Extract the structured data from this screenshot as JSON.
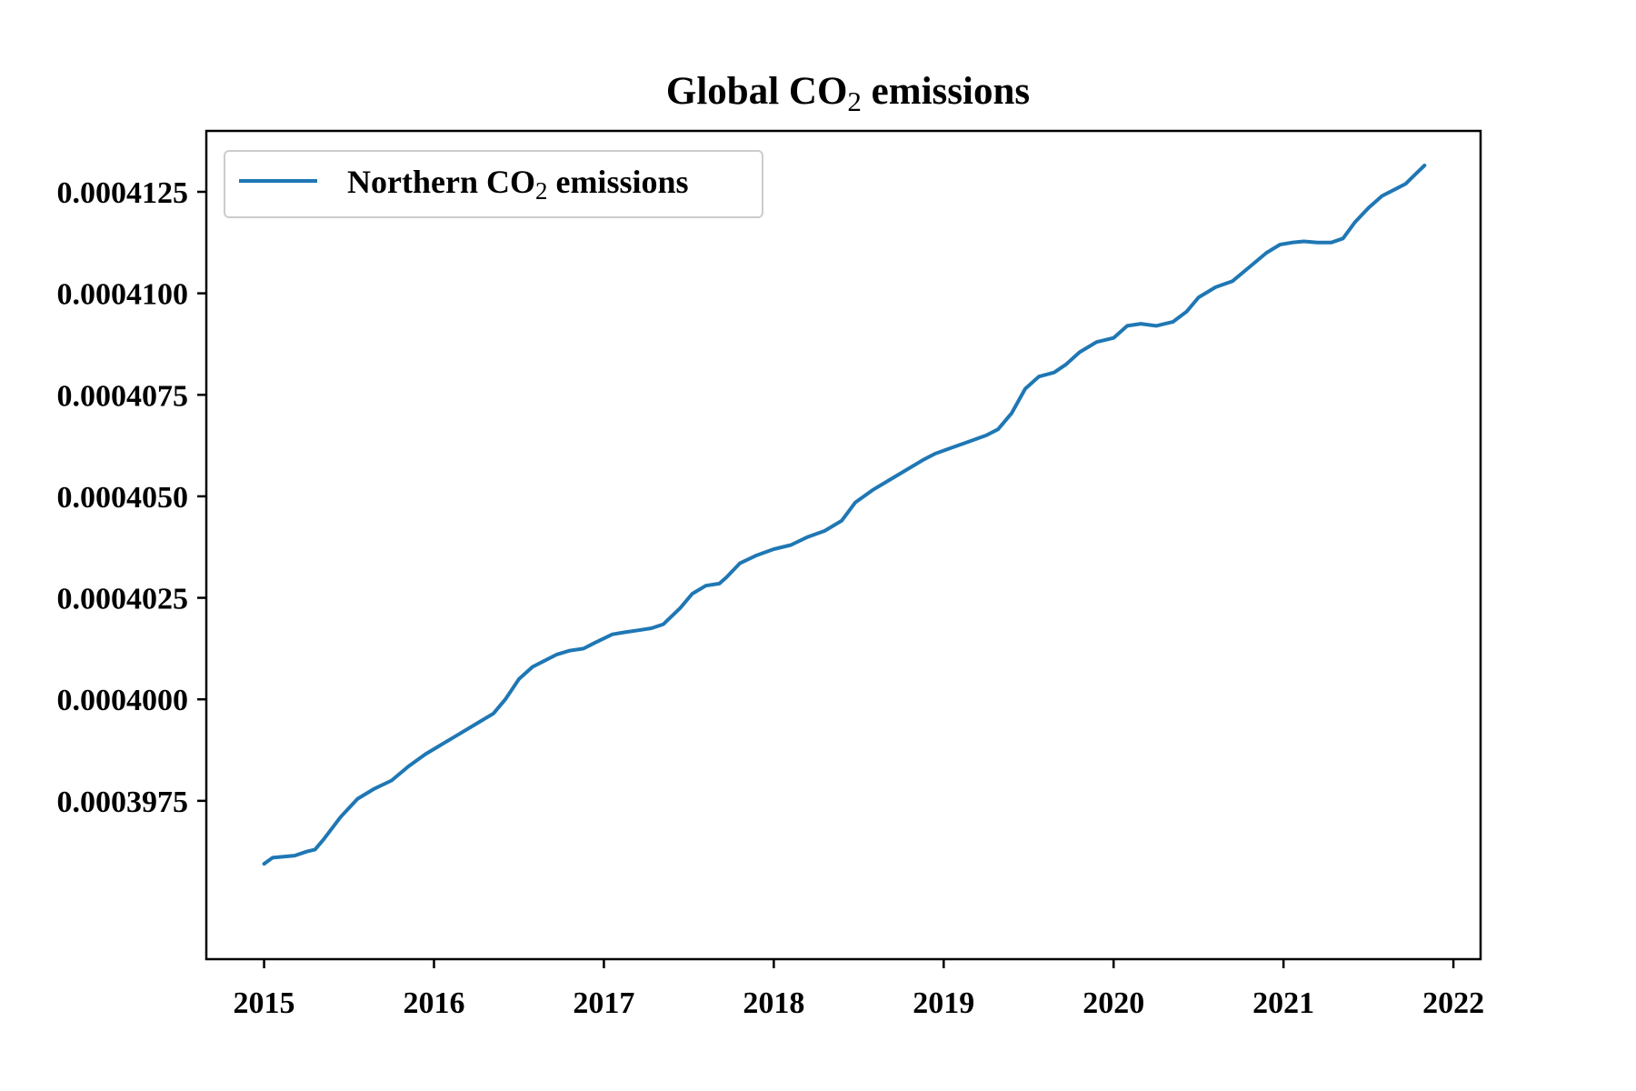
{
  "chart_data": {
    "type": "line",
    "title": "Global CO",
    "title_subscript": "2",
    "title_suffix": " emissions",
    "xlabel": "",
    "ylabel": "",
    "xlim": [
      2014.66,
      2022.16
    ],
    "ylim": [
      0.0003936,
      0.000414
    ],
    "xticks": [
      2015,
      2016,
      2017,
      2018,
      2019,
      2020,
      2021,
      2022
    ],
    "xtick_labels": [
      "2015",
      "2016",
      "2017",
      "2018",
      "2019",
      "2020",
      "2021",
      "2022"
    ],
    "yticks": [
      0.0003975,
      0.0004,
      0.0004025,
      0.000405,
      0.0004075,
      0.00041,
      0.0004125
    ],
    "ytick_labels": [
      "0.0003975",
      "0.0004000",
      "0.0004025",
      "0.0004050",
      "0.0004075",
      "0.0004100",
      "0.0004125"
    ],
    "grid": false,
    "legend_position": "top-left",
    "series": [
      {
        "name": "Northern CO",
        "name_subscript": "2",
        "name_suffix": " emissions",
        "color": "#1f77b4",
        "points": [
          [
            2015.0,
            0.00039595
          ],
          [
            2015.05,
            0.0003961
          ],
          [
            2015.1,
            0.00039612
          ],
          [
            2015.18,
            0.00039615
          ],
          [
            2015.25,
            0.00039625
          ],
          [
            2015.3,
            0.0003963
          ],
          [
            2015.35,
            0.00039655
          ],
          [
            2015.45,
            0.0003971
          ],
          [
            2015.55,
            0.00039755
          ],
          [
            2015.65,
            0.0003978
          ],
          [
            2015.75,
            0.000398
          ],
          [
            2015.85,
            0.00039835
          ],
          [
            2015.95,
            0.00039865
          ],
          [
            2016.05,
            0.0003989
          ],
          [
            2016.15,
            0.00039915
          ],
          [
            2016.25,
            0.0003994
          ],
          [
            2016.35,
            0.00039965
          ],
          [
            2016.42,
            0.0004
          ],
          [
            2016.5,
            0.0004005
          ],
          [
            2016.58,
            0.0004008
          ],
          [
            2016.65,
            0.00040095
          ],
          [
            2016.72,
            0.0004011
          ],
          [
            2016.8,
            0.0004012
          ],
          [
            2016.88,
            0.00040125
          ],
          [
            2016.95,
            0.0004014
          ],
          [
            2017.05,
            0.0004016
          ],
          [
            2017.12,
            0.00040165
          ],
          [
            2017.2,
            0.0004017
          ],
          [
            2017.28,
            0.00040175
          ],
          [
            2017.35,
            0.00040185
          ],
          [
            2017.45,
            0.00040225
          ],
          [
            2017.52,
            0.0004026
          ],
          [
            2017.6,
            0.0004028
          ],
          [
            2017.68,
            0.00040285
          ],
          [
            2017.72,
            0.000403
          ],
          [
            2017.8,
            0.00040335
          ],
          [
            2017.9,
            0.00040355
          ],
          [
            2018.0,
            0.0004037
          ],
          [
            2018.1,
            0.0004038
          ],
          [
            2018.2,
            0.000404
          ],
          [
            2018.3,
            0.00040415
          ],
          [
            2018.4,
            0.0004044
          ],
          [
            2018.48,
            0.00040485
          ],
          [
            2018.58,
            0.00040515
          ],
          [
            2018.68,
            0.0004054
          ],
          [
            2018.78,
            0.00040565
          ],
          [
            2018.88,
            0.0004059
          ],
          [
            2018.95,
            0.00040605
          ],
          [
            2019.05,
            0.0004062
          ],
          [
            2019.15,
            0.00040635
          ],
          [
            2019.25,
            0.0004065
          ],
          [
            2019.32,
            0.00040665
          ],
          [
            2019.4,
            0.00040705
          ],
          [
            2019.48,
            0.00040765
          ],
          [
            2019.56,
            0.00040795
          ],
          [
            2019.65,
            0.00040805
          ],
          [
            2019.72,
            0.00040825
          ],
          [
            2019.8,
            0.00040855
          ],
          [
            2019.9,
            0.0004088
          ],
          [
            2020.0,
            0.0004089
          ],
          [
            2020.08,
            0.0004092
          ],
          [
            2020.16,
            0.00040925
          ],
          [
            2020.25,
            0.0004092
          ],
          [
            2020.35,
            0.0004093
          ],
          [
            2020.43,
            0.00040955
          ],
          [
            2020.5,
            0.0004099
          ],
          [
            2020.6,
            0.00041015
          ],
          [
            2020.7,
            0.0004103
          ],
          [
            2020.8,
            0.00041065
          ],
          [
            2020.9,
            0.000411
          ],
          [
            2020.98,
            0.0004112
          ],
          [
            2021.05,
            0.00041125
          ],
          [
            2021.12,
            0.00041128
          ],
          [
            2021.2,
            0.00041125
          ],
          [
            2021.28,
            0.00041125
          ],
          [
            2021.35,
            0.00041135
          ],
          [
            2021.42,
            0.00041175
          ],
          [
            2021.5,
            0.0004121
          ],
          [
            2021.58,
            0.0004124
          ],
          [
            2021.65,
            0.00041255
          ],
          [
            2021.72,
            0.0004127
          ],
          [
            2021.78,
            0.00041295
          ],
          [
            2021.83,
            0.00041315
          ]
        ]
      }
    ]
  }
}
